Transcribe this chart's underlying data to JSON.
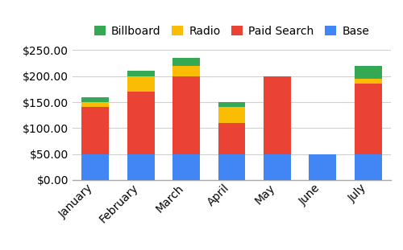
{
  "categories": [
    "January",
    "February",
    "March",
    "April",
    "May",
    "June",
    "July"
  ],
  "base": [
    50,
    50,
    50,
    50,
    50,
    50,
    50
  ],
  "paid_search": [
    90,
    120,
    150,
    60,
    150,
    0,
    135
  ],
  "radio": [
    10,
    30,
    20,
    30,
    0,
    0,
    10
  ],
  "billboard": [
    10,
    10,
    15,
    10,
    0,
    0,
    25
  ],
  "colors": {
    "base": "#4285F4",
    "paid_search": "#EA4335",
    "radio": "#FBBC04",
    "billboard": "#34A853"
  },
  "legend_labels": [
    "Billboard",
    "Radio",
    "Paid Search",
    "Base"
  ],
  "ylim": [
    0,
    260
  ],
  "yticks": [
    0,
    50,
    100,
    150,
    200,
    250
  ],
  "background_color": "#ffffff",
  "grid_color": "#d0d0d0"
}
